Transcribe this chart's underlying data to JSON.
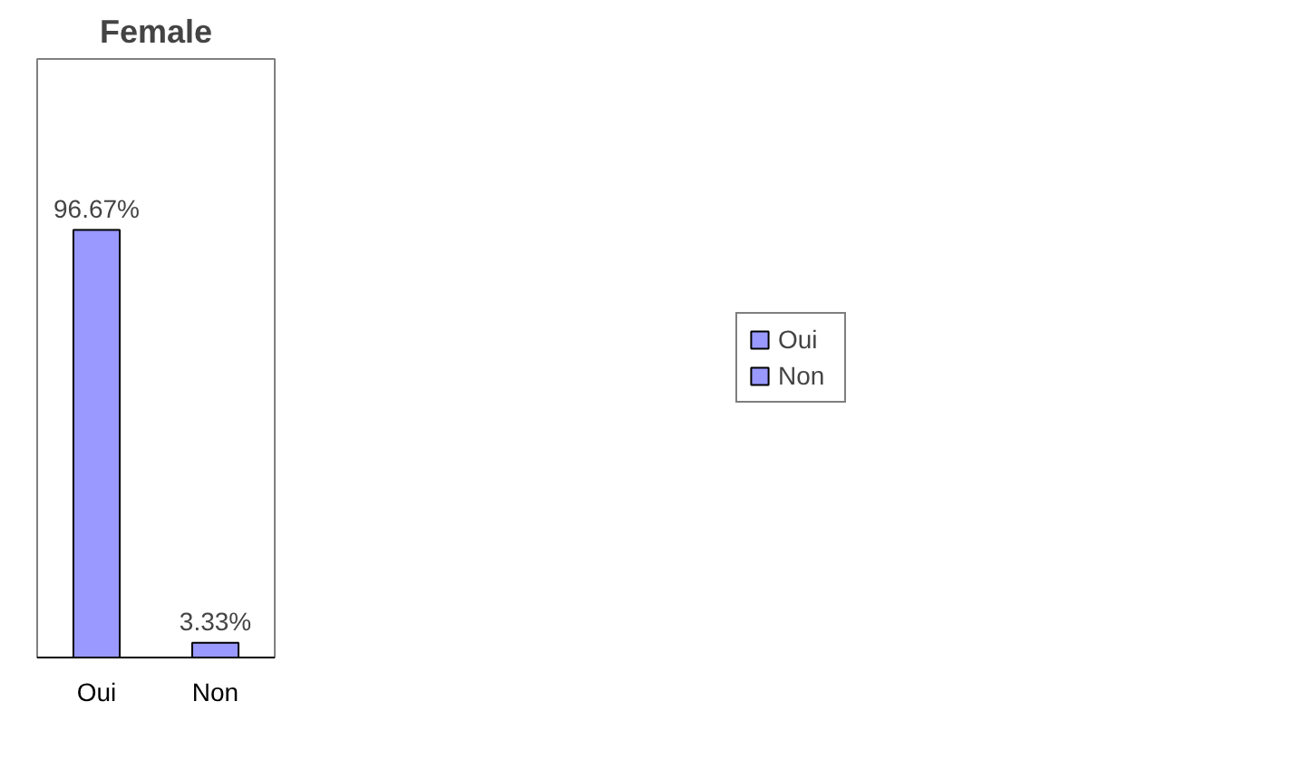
{
  "chart_data": {
    "type": "bar",
    "title": "Female",
    "categories": [
      "Oui",
      "Non"
    ],
    "series": [
      {
        "name": "Oui",
        "color": "#9999ff",
        "values": [
          96.67,
          null
        ],
        "value_labels": [
          "96.67%",
          null
        ]
      },
      {
        "name": "Non",
        "color": "#9999ff",
        "values": [
          null,
          3.33
        ],
        "value_labels": [
          null,
          "3.33%"
        ]
      }
    ],
    "legend": "right",
    "grid": false,
    "tick_labels": "x"
  }
}
